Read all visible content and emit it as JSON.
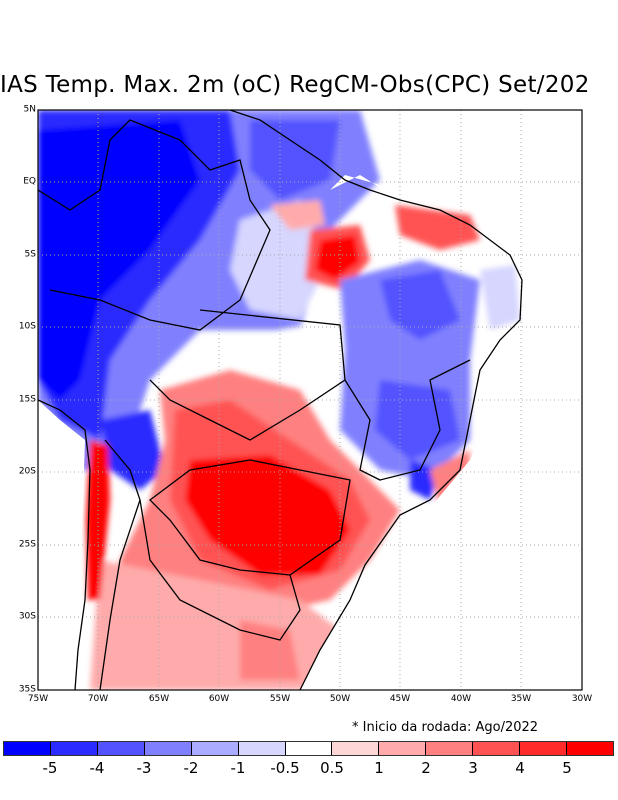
{
  "title": "IAS Temp. Max. 2m (oC) RegCM-Obs(CPC) Set/202",
  "note": "* Inicio da rodada: Ago/2022",
  "map": {
    "lat_labels": [
      "5N",
      "EQ",
      "5S",
      "10S",
      "15S",
      "20S",
      "25S",
      "30S",
      "35S"
    ],
    "lon_labels": [
      "75W",
      "70W",
      "65W",
      "60W",
      "55W",
      "50W",
      "45W",
      "40W",
      "35W",
      "30W"
    ],
    "lon_range": [
      -75,
      -30
    ],
    "lat_range": [
      -35,
      5
    ]
  },
  "colorbar": {
    "colors": [
      "#0000ff",
      "#2b2bff",
      "#5252ff",
      "#8080ff",
      "#abababff",
      "#d6d6ff",
      "#ffffff",
      "#ffd6d6",
      "#ffabab",
      "#ff8080",
      "#ff5252",
      "#ff2b2b",
      "#ff0000"
    ],
    "labels": [
      "-5",
      "-4",
      "-3",
      "-2",
      "-1",
      "-0.5",
      "0.5",
      "1",
      "2",
      "3",
      "4",
      "5"
    ]
  }
}
